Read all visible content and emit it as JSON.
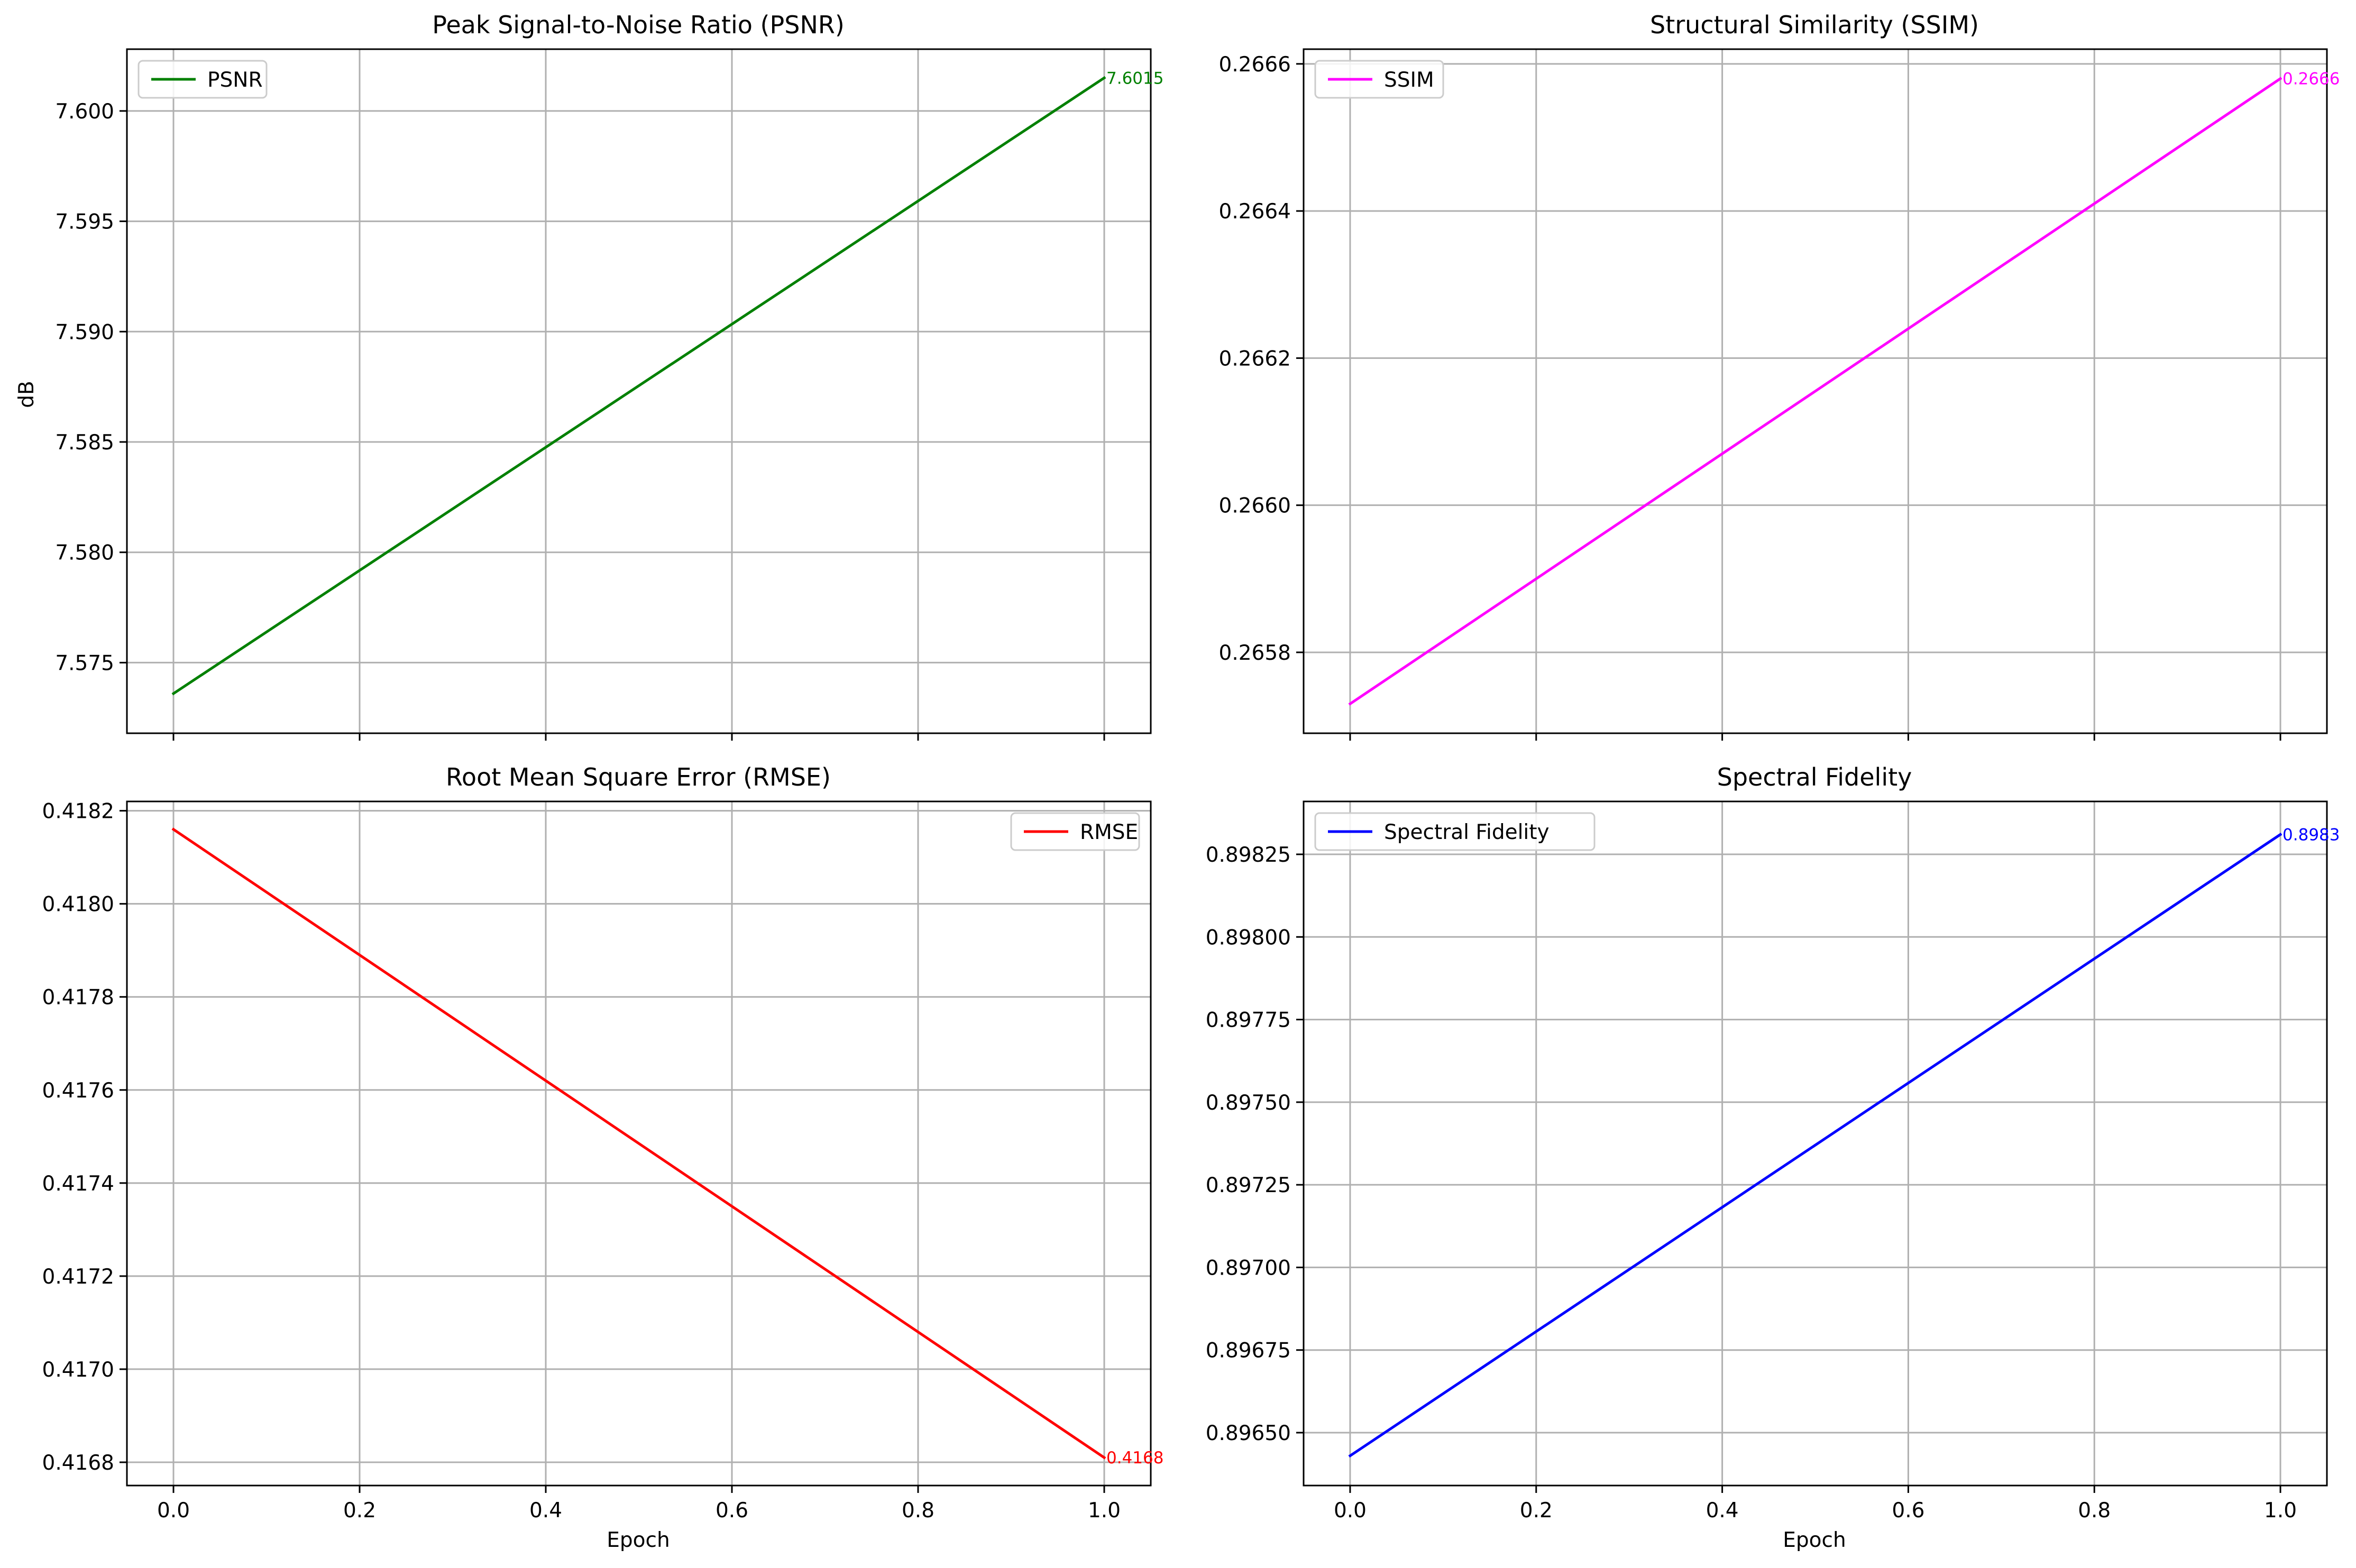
{
  "chart_data": [
    {
      "type": "line",
      "title": "Peak Signal-to-Noise Ratio (PSNR)",
      "xlabel": "",
      "ylabel": "dB",
      "x": [
        0,
        1
      ],
      "xlim": [
        -0.05,
        1.05
      ],
      "xticks": [
        0.0,
        0.2,
        0.4,
        0.6,
        0.8,
        1.0
      ],
      "xtick_labels": [],
      "ylim": [
        7.5718,
        7.6028
      ],
      "yticks": [
        7.575,
        7.58,
        7.585,
        7.59,
        7.595,
        7.6
      ],
      "ytick_labels": [
        "7.575",
        "7.580",
        "7.585",
        "7.590",
        "7.595",
        "7.600"
      ],
      "series": [
        {
          "name": "PSNR",
          "color": "#008000",
          "values": [
            7.5736,
            7.6015
          ]
        }
      ],
      "end_label": "7.6015",
      "legend_position": "upper-left",
      "grid": true
    },
    {
      "type": "line",
      "title": "Structural Similarity (SSIM)",
      "xlabel": "",
      "ylabel": "",
      "x": [
        0,
        1
      ],
      "xlim": [
        -0.05,
        1.05
      ],
      "xticks": [
        0.0,
        0.2,
        0.4,
        0.6,
        0.8,
        1.0
      ],
      "xtick_labels": [],
      "ylim": [
        0.26569,
        0.26662
      ],
      "yticks": [
        0.2658,
        0.266,
        0.2662,
        0.2664,
        0.2666
      ],
      "ytick_labels": [
        "0.2658",
        "0.2660",
        "0.2662",
        "0.2664",
        "0.2666"
      ],
      "series": [
        {
          "name": "SSIM",
          "color": "#ff00ff",
          "values": [
            0.26573,
            0.26658
          ]
        }
      ],
      "end_label": "0.2666",
      "legend_position": "upper-left",
      "grid": true
    },
    {
      "type": "line",
      "title": "Root Mean Square Error (RMSE)",
      "xlabel": "Epoch",
      "ylabel": "",
      "x": [
        0,
        1
      ],
      "xlim": [
        -0.05,
        1.05
      ],
      "xticks": [
        0.0,
        0.2,
        0.4,
        0.6,
        0.8,
        1.0
      ],
      "xtick_labels": [
        "0.0",
        "0.2",
        "0.4",
        "0.6",
        "0.8",
        "1.0"
      ],
      "ylim": [
        0.41675,
        0.41822
      ],
      "yticks": [
        0.4168,
        0.417,
        0.4172,
        0.4174,
        0.4176,
        0.4178,
        0.418,
        0.4182
      ],
      "ytick_labels": [
        "0.4168",
        "0.4170",
        "0.4172",
        "0.4174",
        "0.4176",
        "0.4178",
        "0.4180",
        "0.4182"
      ],
      "series": [
        {
          "name": "RMSE",
          "color": "#ff0000",
          "values": [
            0.41816,
            0.41681
          ]
        }
      ],
      "end_label": "0.4168",
      "legend_position": "upper-right",
      "grid": true
    },
    {
      "type": "line",
      "title": "Spectral Fidelity",
      "xlabel": "Epoch",
      "ylabel": "",
      "x": [
        0,
        1
      ],
      "xlim": [
        -0.05,
        1.05
      ],
      "xticks": [
        0.0,
        0.2,
        0.4,
        0.6,
        0.8,
        1.0
      ],
      "xtick_labels": [
        "0.0",
        "0.2",
        "0.4",
        "0.6",
        "0.8",
        "1.0"
      ],
      "ylim": [
        0.89634,
        0.89841
      ],
      "yticks": [
        0.8965,
        0.89675,
        0.897,
        0.89725,
        0.8975,
        0.89775,
        0.898,
        0.89825
      ],
      "ytick_labels": [
        "0.89650",
        "0.89675",
        "0.89700",
        "0.89725",
        "0.89750",
        "0.89775",
        "0.89800",
        "0.89825"
      ],
      "series": [
        {
          "name": "Spectral Fidelity",
          "color": "#0000ff",
          "values": [
            0.89643,
            0.89831
          ]
        }
      ],
      "end_label": "0.8983",
      "legend_position": "upper-left",
      "grid": true
    }
  ]
}
